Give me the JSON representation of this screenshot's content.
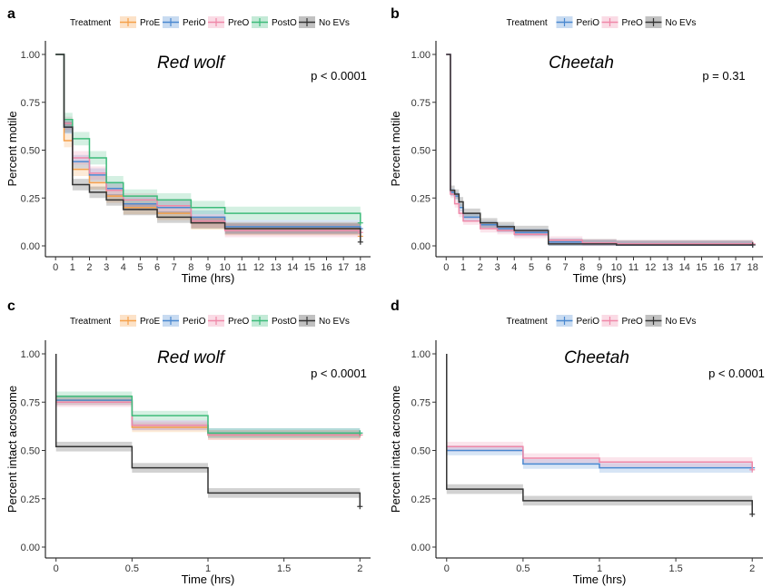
{
  "colors": {
    "ProE": "#F5A04A",
    "PeriO": "#4A88D0",
    "PreO": "#EF88A8",
    "PostO": "#3DBB7A",
    "No EVs": "#333333"
  },
  "chart_data": [
    {
      "panel": "a",
      "type": "line",
      "title": "Red wolf",
      "annotation": "p < 0.0001",
      "xlabel": "Time (hrs)",
      "ylabel": "Percent motile",
      "xlim": [
        -0.6,
        18.6
      ],
      "ylim": [
        0,
        1
      ],
      "xticks": [
        0,
        1,
        2,
        3,
        4,
        5,
        6,
        7,
        8,
        9,
        10,
        11,
        12,
        13,
        14,
        15,
        16,
        17,
        18
      ],
      "xtick_labels": [
        "0",
        "1",
        "2",
        "3",
        "4",
        "5",
        "6",
        "7",
        "8",
        "9",
        "10",
        "11",
        "12",
        "13",
        "14",
        "15",
        "16",
        "17",
        "18"
      ],
      "yticks": [
        0,
        0.25,
        0.5,
        0.75,
        1
      ],
      "ytick_labels": [
        "0.00",
        "0.25",
        "0.50",
        "0.75",
        "1.00"
      ],
      "legend_title": "Treatment",
      "legend": [
        "ProE",
        "PeriO",
        "PreO",
        "PostO",
        "No EVs"
      ],
      "legend_position": "top",
      "grid": false,
      "series": [
        {
          "name": "ProE",
          "x": [
            0,
            0.5,
            1,
            2,
            3,
            4,
            6,
            8,
            10,
            18
          ],
          "y": [
            1,
            0.55,
            0.4,
            0.33,
            0.26,
            0.2,
            0.17,
            0.12,
            0.09,
            0.05
          ],
          "ci": 0.035
        },
        {
          "name": "PeriO",
          "x": [
            0,
            0.5,
            1,
            2,
            3,
            4,
            6,
            8,
            10,
            18
          ],
          "y": [
            1,
            0.62,
            0.44,
            0.37,
            0.3,
            0.22,
            0.2,
            0.15,
            0.1,
            0.09
          ],
          "ci": 0.035
        },
        {
          "name": "PreO",
          "x": [
            0,
            0.5,
            1,
            2,
            3,
            4,
            6,
            8,
            10,
            18
          ],
          "y": [
            1,
            0.64,
            0.46,
            0.38,
            0.29,
            0.24,
            0.21,
            0.13,
            0.08,
            0.07
          ],
          "ci": 0.035
        },
        {
          "name": "PostO",
          "x": [
            0,
            0.5,
            1,
            2,
            3,
            4,
            6,
            8,
            10,
            18
          ],
          "y": [
            1,
            0.66,
            0.56,
            0.46,
            0.33,
            0.26,
            0.24,
            0.2,
            0.17,
            0.12
          ],
          "ci": 0.035
        },
        {
          "name": "No EVs",
          "x": [
            0,
            0.5,
            1,
            2,
            3,
            4,
            6,
            8,
            10,
            18
          ],
          "y": [
            1,
            0.62,
            0.32,
            0.28,
            0.24,
            0.19,
            0.15,
            0.12,
            0.09,
            0.02
          ],
          "ci": 0.03
        }
      ]
    },
    {
      "panel": "b",
      "type": "line",
      "title": "Cheetah",
      "annotation": "p = 0.31",
      "xlabel": "Time (hrs)",
      "ylabel": "Percent motile",
      "xlim": [
        -0.6,
        18.6
      ],
      "ylim": [
        0,
        1
      ],
      "xticks": [
        0,
        1,
        2,
        3,
        4,
        5,
        6,
        7,
        8,
        9,
        10,
        11,
        12,
        13,
        14,
        15,
        16,
        17,
        18
      ],
      "xtick_labels": [
        "0",
        "1",
        "2",
        "3",
        "4",
        "5",
        "6",
        "7",
        "8",
        "9",
        "10",
        "11",
        "12",
        "13",
        "14",
        "15",
        "16",
        "17",
        "18"
      ],
      "yticks": [
        0,
        0.25,
        0.5,
        0.75,
        1
      ],
      "ytick_labels": [
        "0.00",
        "0.25",
        "0.50",
        "0.75",
        "1.00"
      ],
      "legend_title": "Treatment",
      "legend": [
        "PeriO",
        "PreO",
        "No EVs"
      ],
      "legend_position": "top",
      "grid": false,
      "series": [
        {
          "name": "PeriO",
          "x": [
            0,
            0.25,
            0.5,
            0.75,
            1,
            2,
            3,
            4,
            6,
            8,
            10,
            18
          ],
          "y": [
            1,
            0.28,
            0.26,
            0.2,
            0.15,
            0.11,
            0.09,
            0.07,
            0.02,
            0.01,
            0.005,
            0.005
          ],
          "ci": 0.02
        },
        {
          "name": "PreO",
          "x": [
            0,
            0.25,
            0.5,
            0.75,
            1,
            2,
            3,
            4,
            6,
            8,
            10,
            18
          ],
          "y": [
            1,
            0.27,
            0.22,
            0.17,
            0.13,
            0.09,
            0.08,
            0.06,
            0.03,
            0.015,
            0.01,
            0.01
          ],
          "ci": 0.02
        },
        {
          "name": "No EVs",
          "x": [
            0,
            0.25,
            0.5,
            0.75,
            1,
            2,
            3,
            4,
            6,
            8,
            10,
            18
          ],
          "y": [
            1,
            0.29,
            0.27,
            0.23,
            0.17,
            0.12,
            0.1,
            0.08,
            0.01,
            0.01,
            0.005,
            0.005
          ],
          "ci": 0.025
        }
      ]
    },
    {
      "panel": "c",
      "type": "line",
      "title": "Red wolf",
      "annotation": "p < 0.0001",
      "xlabel": "Time (hrs)",
      "ylabel": "Percent intact acrosome",
      "xlim": [
        -0.07,
        2.07
      ],
      "ylim": [
        0,
        1
      ],
      "xticks": [
        0,
        0.5,
        1,
        1.5,
        2
      ],
      "xtick_labels": [
        "0",
        "0.5",
        "1",
        "1.5",
        "2"
      ],
      "yticks": [
        0,
        0.25,
        0.5,
        0.75,
        1
      ],
      "ytick_labels": [
        "0.00",
        "0.25",
        "0.50",
        "0.75",
        "1.00"
      ],
      "legend_title": "Treatment",
      "legend": [
        "ProE",
        "PeriO",
        "PreO",
        "PostO",
        "No EVs"
      ],
      "legend_position": "top",
      "grid": false,
      "series": [
        {
          "name": "ProE",
          "x": [
            0,
            0.5,
            1,
            2
          ],
          "y": [
            0.76,
            0.62,
            0.58,
            0.58
          ],
          "ci": 0.025
        },
        {
          "name": "PeriO",
          "x": [
            0,
            0.5,
            1,
            2
          ],
          "y": [
            0.76,
            0.63,
            0.59,
            0.59
          ],
          "ci": 0.025
        },
        {
          "name": "PreO",
          "x": [
            0,
            0.5,
            1,
            2
          ],
          "y": [
            0.75,
            0.63,
            0.58,
            0.58
          ],
          "ci": 0.025
        },
        {
          "name": "PostO",
          "x": [
            0,
            0.5,
            1,
            2
          ],
          "y": [
            0.78,
            0.68,
            0.59,
            0.59
          ],
          "ci": 0.025
        },
        {
          "name": "No EVs",
          "x": [
            0,
            0.5,
            1,
            2
          ],
          "y": [
            0.52,
            0.41,
            0.28,
            0.21
          ],
          "ci": 0.025,
          "start": 1
        }
      ]
    },
    {
      "panel": "d",
      "type": "line",
      "title": "Cheetah",
      "annotation": "p < 0.0001",
      "xlabel": "Time (hrs)",
      "ylabel": "Percent intact acrosome",
      "xlim": [
        -0.07,
        2.07
      ],
      "ylim": [
        0,
        1
      ],
      "xticks": [
        0,
        0.5,
        1,
        1.5,
        2
      ],
      "xtick_labels": [
        "0",
        "0.5",
        "1",
        "1.5",
        "2"
      ],
      "yticks": [
        0,
        0.25,
        0.5,
        0.75,
        1
      ],
      "ytick_labels": [
        "0.00",
        "0.25",
        "0.50",
        "0.75",
        "1.00"
      ],
      "legend_title": "Treatment",
      "legend": [
        "PeriO",
        "PreO",
        "No EVs"
      ],
      "legend_position": "top",
      "grid": false,
      "series": [
        {
          "name": "PeriO",
          "x": [
            0,
            0.5,
            1,
            2
          ],
          "y": [
            0.5,
            0.43,
            0.41,
            0.41
          ],
          "ci": 0.025
        },
        {
          "name": "PreO",
          "x": [
            0,
            0.5,
            1,
            2
          ],
          "y": [
            0.52,
            0.46,
            0.44,
            0.4
          ],
          "ci": 0.025
        },
        {
          "name": "No EVs",
          "x": [
            0,
            0.5,
            1,
            2
          ],
          "y": [
            0.3,
            0.24,
            0.24,
            0.17
          ],
          "ci": 0.025,
          "start": 1
        }
      ]
    }
  ]
}
